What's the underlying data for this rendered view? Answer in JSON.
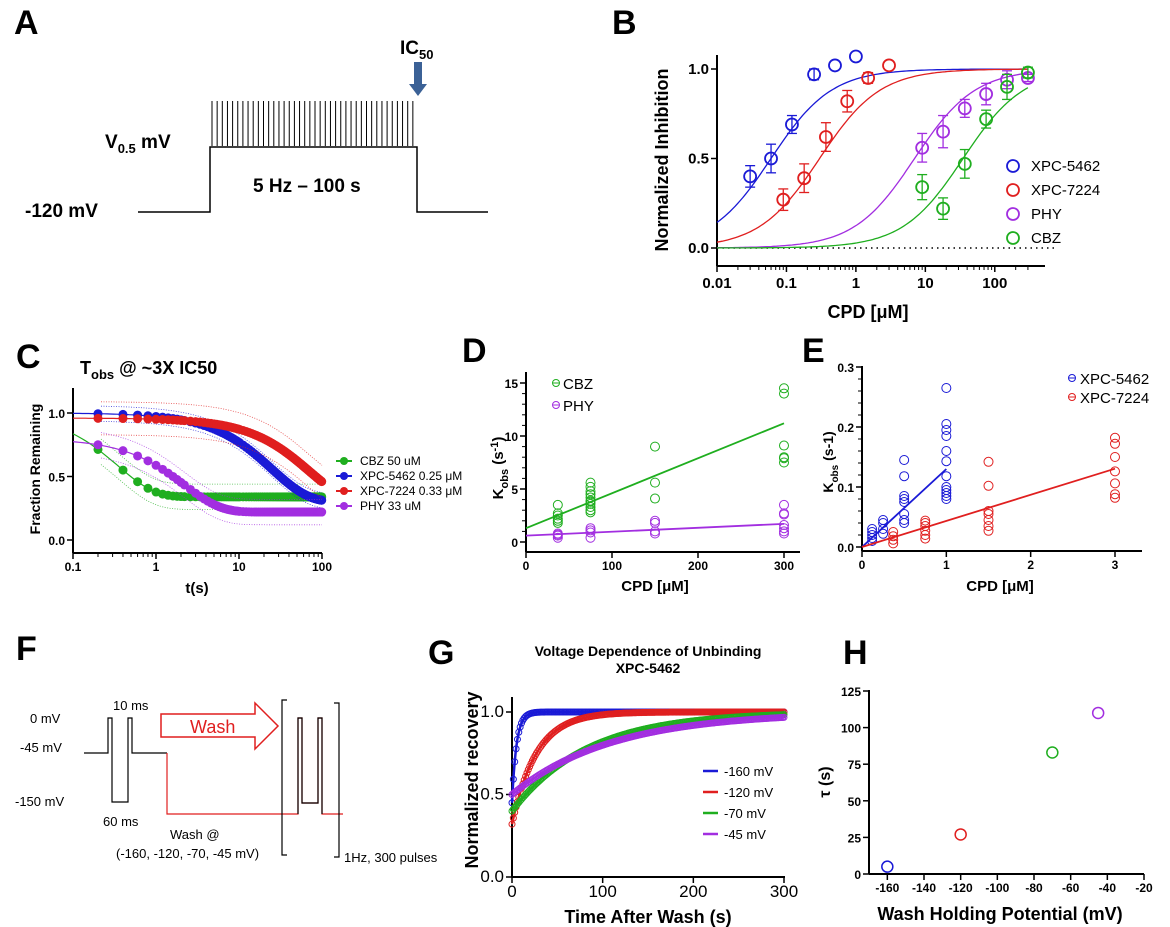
{
  "colors": {
    "blue": "#1a1ad6",
    "red": "#e01f1f",
    "purple": "#a22ee0",
    "green": "#1fae1f",
    "arrow": "#3b6196"
  },
  "panel_letters": {
    "A": "A",
    "B": "B",
    "C": "C",
    "D": "D",
    "E": "E",
    "F": "F",
    "G": "G",
    "H": "H"
  },
  "panel_A": {
    "ic50_main": "IC",
    "ic50_sub": "50",
    "v_main": "V",
    "v_sub": "0.5",
    "v_unit": " mV",
    "hold_label": "-120 mV",
    "protocol_label": "5 Hz – 100 s"
  },
  "panel_F": {
    "label_10ms": "10 ms",
    "label_0mv": "0 mV",
    "label_m45": "-45 mV",
    "label_m150": "-150 mV",
    "label_60ms": "60 ms",
    "wash": "Wash",
    "wash_at": "Wash @",
    "wash_values": "(-160, -120, -70, -45 mV)",
    "pulses": "1Hz, 300 pulses"
  },
  "chart_data": [
    {
      "id": "B",
      "type": "scatter",
      "title": "",
      "xlabel": "CPD [μM]",
      "ylabel": "Normalized Inhibition",
      "xscale": "log",
      "xlim": [
        0.01,
        400
      ],
      "ylim": [
        -0.1,
        1.1
      ],
      "xticks": [
        "0.01",
        "0.1",
        "1",
        "10",
        "100"
      ],
      "yticks": [
        "0.0",
        "0.5",
        "1.0"
      ],
      "legend_position": "right-middle",
      "series": [
        {
          "name": "XPC-5462",
          "color": "blue",
          "ic50": 0.06,
          "hill": 1.0,
          "x": [
            0.03,
            0.06,
            0.12,
            0.25,
            0.5,
            1.0
          ],
          "y": [
            0.4,
            0.5,
            0.69,
            0.97,
            1.02,
            1.07
          ],
          "err": [
            0.06,
            0.08,
            0.05,
            0.03,
            0,
            0
          ]
        },
        {
          "name": "XPC-7224",
          "color": "red",
          "ic50": 0.3,
          "hill": 1.0,
          "x": [
            0.09,
            0.18,
            0.37,
            0.75,
            1.5,
            3.0
          ],
          "y": [
            0.27,
            0.39,
            0.62,
            0.82,
            0.95,
            1.02
          ],
          "err": [
            0.06,
            0.08,
            0.08,
            0.06,
            0.03,
            0
          ]
        },
        {
          "name": "PHY",
          "color": "purple",
          "ic50": 7,
          "hill": 1.0,
          "x": [
            9,
            18,
            37,
            75,
            150,
            300
          ],
          "y": [
            0.56,
            0.65,
            0.78,
            0.86,
            0.94,
            0.95
          ],
          "err": [
            0.08,
            0.09,
            0.05,
            0.06,
            0.05,
            0.02
          ]
        },
        {
          "name": "CBZ",
          "color": "green",
          "ic50": 35,
          "hill": 1.0,
          "x": [
            9,
            18,
            37,
            75,
            150,
            300
          ],
          "y": [
            0.34,
            0.22,
            0.47,
            0.72,
            0.9,
            0.98
          ],
          "err": [
            0.07,
            0.06,
            0.08,
            0.05,
            0.07,
            0.03
          ]
        }
      ]
    },
    {
      "id": "C",
      "type": "scatter",
      "title_main": "T",
      "title_sub": "obs",
      "title_rest": " @ ~3X IC50",
      "xlabel": "t(s)",
      "ylabel": "Fraction Remaining",
      "xscale": "log",
      "xlim": [
        0.1,
        100
      ],
      "ylim": [
        -0.1,
        1.2
      ],
      "xticks": [
        "0.1",
        "1",
        "10",
        "100"
      ],
      "yticks": [
        "0.0",
        "0.5",
        "1.0"
      ],
      "legend_position": "right",
      "series": [
        {
          "name": "CBZ 50 uM",
          "color": "green",
          "plateau": 0.34,
          "tau": 0.35,
          "start": 1.0,
          "envelope": 0.1
        },
        {
          "name": "XPC-5462 0.25 μM",
          "color": "blue",
          "plateau": 0.3,
          "tau": 25,
          "start": 1.0,
          "envelope": 0.06
        },
        {
          "name": "XPC-7224 0.33 μM",
          "color": "red",
          "plateau": 0.3,
          "tau": 70,
          "start": 0.96,
          "envelope": 0.13
        },
        {
          "name": "PHY 33 uM",
          "color": "purple",
          "plateau": 0.22,
          "tau": 2.2,
          "start": 0.8,
          "envelope": 0.1
        }
      ]
    },
    {
      "id": "D",
      "type": "scatter",
      "xlabel": "CPD [μM]",
      "ylabel_main": "K",
      "ylabel_sub": "obs",
      "ylabel_rest": " (s",
      "ylabel_sup": "-1",
      "ylabel_end": ")",
      "xlim": [
        0,
        320
      ],
      "ylim": [
        -1,
        16
      ],
      "xticks": [
        "0",
        "100",
        "200",
        "300"
      ],
      "yticks": [
        "0",
        "5",
        "10",
        "15"
      ],
      "legend_position": "top-left",
      "series": [
        {
          "name": "CBZ",
          "color": "green",
          "fit": [
            1.3,
            0.033
          ],
          "x": [
            37,
            37,
            37,
            37,
            37,
            37,
            75,
            75,
            75,
            75,
            75,
            75,
            75,
            75,
            75,
            75,
            75,
            150,
            150,
            150,
            300,
            300,
            300,
            300,
            300,
            300
          ],
          "y": [
            1.8,
            2.0,
            2.2,
            2.5,
            2.7,
            3.5,
            2.8,
            3.0,
            3.3,
            3.6,
            3.9,
            4.2,
            4.5,
            4.8,
            5.2,
            5.6,
            3.8,
            4.1,
            5.6,
            9.0,
            7.5,
            7.9,
            9.1,
            14.0,
            14.5,
            8.0
          ]
        },
        {
          "name": "PHY",
          "color": "purple",
          "fit": [
            0.6,
            0.0037
          ],
          "x": [
            37,
            37,
            37,
            37,
            75,
            75,
            75,
            75,
            150,
            150,
            150,
            150,
            300,
            300,
            300,
            300,
            300,
            300,
            300
          ],
          "y": [
            0.4,
            0.6,
            0.7,
            0.8,
            0.4,
            0.9,
            1.1,
            1.3,
            0.8,
            1.0,
            1.8,
            2.0,
            0.8,
            1.0,
            1.3,
            1.6,
            2.6,
            2.7,
            3.5
          ]
        }
      ]
    },
    {
      "id": "E",
      "type": "scatter",
      "xlabel": "CPD [μM]",
      "ylabel_main": "K",
      "ylabel_sub": "obs",
      "ylabel_rest": " (s-1)",
      "xlim": [
        0,
        3.3
      ],
      "ylim": [
        -0.005,
        0.3
      ],
      "xticks": [
        "0",
        "1",
        "2",
        "3"
      ],
      "yticks": [
        "0.0",
        "0.1",
        "0.2",
        "0.3"
      ],
      "legend_position": "top-right",
      "series": [
        {
          "name": "XPC-5462",
          "color": "blue",
          "fit": [
            0,
            0.13
          ],
          "fit_xmax": 1.0,
          "x": [
            0.12,
            0.12,
            0.12,
            0.12,
            0.12,
            0.25,
            0.25,
            0.25,
            0.25,
            0.5,
            0.5,
            0.5,
            0.5,
            0.5,
            0.5,
            0.5,
            0.5,
            1,
            1,
            1,
            1,
            1,
            1,
            1,
            1,
            1,
            1,
            1,
            1
          ],
          "y": [
            0.01,
            0.015,
            0.02,
            0.025,
            0.03,
            0.022,
            0.03,
            0.04,
            0.045,
            0.04,
            0.045,
            0.055,
            0.075,
            0.08,
            0.085,
            0.118,
            0.145,
            0.08,
            0.085,
            0.09,
            0.1,
            0.118,
            0.143,
            0.16,
            0.185,
            0.195,
            0.205,
            0.265,
            0.095
          ]
        },
        {
          "name": "XPC-7224",
          "color": "red",
          "fit": [
            0,
            0.0435
          ],
          "fit_xmax": 3.0,
          "x": [
            0.37,
            0.37,
            0.37,
            0.37,
            0.75,
            0.75,
            0.75,
            0.75,
            0.75,
            0.75,
            1.5,
            1.5,
            1.5,
            1.5,
            1.5,
            1.5,
            1.5,
            3,
            3,
            3,
            3,
            3,
            3,
            3
          ],
          "y": [
            0.006,
            0.012,
            0.018,
            0.025,
            0.014,
            0.02,
            0.027,
            0.035,
            0.04,
            0.044,
            0.027,
            0.035,
            0.045,
            0.055,
            0.06,
            0.102,
            0.142,
            0.082,
            0.088,
            0.106,
            0.126,
            0.15,
            0.172,
            0.182
          ]
        }
      ]
    },
    {
      "id": "G",
      "type": "line",
      "title": "Voltage Dependence of Unbinding",
      "subtitle": "XPC-5462",
      "xlabel": "Time After Wash (s)",
      "ylabel": "Normalized recovery",
      "xlim": [
        0,
        300
      ],
      "ylim": [
        0,
        1.1
      ],
      "xticks": [
        "0",
        "100",
        "200",
        "300"
      ],
      "yticks": [
        "0.0",
        "0.5",
        "1.0"
      ],
      "legend_position": "right-middle",
      "series": [
        {
          "name": "-160 mV",
          "color": "blue",
          "tau": 5,
          "y0": 0.45
        },
        {
          "name": "-120 mV",
          "color": "red",
          "tau": 27,
          "y0": 0.32
        },
        {
          "name": "-70 mV",
          "color": "green",
          "tau": 83,
          "y0": 0.4
        },
        {
          "name": "-45 mV",
          "color": "purple",
          "tau": 110,
          "y0": 0.5
        }
      ]
    },
    {
      "id": "H",
      "type": "scatter",
      "xlabel": "Wash Holding Potential (mV)",
      "ylabel": "τ (s)",
      "xlim": [
        -170,
        -20
      ],
      "ylim": [
        0,
        125
      ],
      "xticks": [
        "-160",
        "-140",
        "-120",
        "-100",
        "-80",
        "-60",
        "-40",
        "-20"
      ],
      "yticks": [
        "0",
        "25",
        "50",
        "75",
        "100",
        "125"
      ],
      "points": [
        {
          "x": -160,
          "y": 5,
          "color": "blue"
        },
        {
          "x": -120,
          "y": 27,
          "color": "red"
        },
        {
          "x": -70,
          "y": 83,
          "color": "green"
        },
        {
          "x": -45,
          "y": 110,
          "color": "purple"
        }
      ]
    }
  ]
}
